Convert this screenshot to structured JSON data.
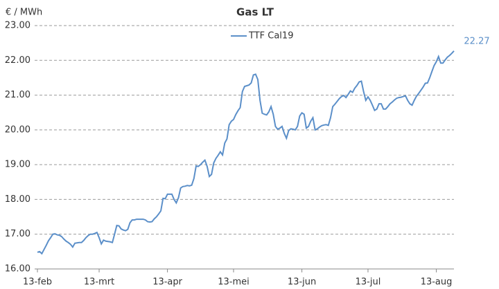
{
  "chart_data": {
    "type": "line",
    "title": "Gas LT",
    "y_label": "€ / MWh",
    "categories": [
      "13-feb",
      null,
      null,
      null,
      null,
      null,
      null,
      null,
      null,
      null,
      null,
      null,
      null,
      null,
      null,
      null,
      null,
      null,
      null,
      null,
      null,
      null,
      null,
      null,
      null,
      null,
      null,
      null,
      "13-mrt",
      null,
      null,
      null,
      null,
      null,
      null,
      null,
      null,
      null,
      null,
      null,
      null,
      null,
      null,
      null,
      null,
      null,
      null,
      null,
      null,
      null,
      null,
      null,
      null,
      null,
      null,
      null,
      null,
      null,
      null,
      "13-apr",
      null,
      null,
      null,
      null,
      null,
      null,
      null,
      null,
      null,
      null,
      null,
      null,
      null,
      null,
      null,
      null,
      null,
      null,
      null,
      null,
      null,
      null,
      null,
      null,
      null,
      null,
      null,
      null,
      null,
      "13-mei",
      null,
      null,
      null,
      null,
      null,
      null,
      null,
      null,
      null,
      null,
      null,
      null,
      null,
      null,
      null,
      null,
      null,
      null,
      null,
      null,
      null,
      null,
      null,
      null,
      null,
      null,
      null,
      null,
      null,
      null,
      "13-jun",
      null,
      null,
      null,
      null,
      null,
      null,
      null,
      null,
      null,
      null,
      null,
      null,
      null,
      null,
      null,
      null,
      null,
      null,
      null,
      null,
      null,
      null,
      null,
      null,
      null,
      null,
      null,
      null,
      null,
      "13-jul",
      null,
      null,
      null,
      null,
      null,
      null,
      null,
      null,
      null,
      null,
      null,
      null,
      null,
      null,
      null,
      null,
      null,
      null,
      null,
      null,
      null,
      null,
      null,
      null,
      null,
      null,
      null,
      null,
      null,
      null,
      "13-aug",
      null,
      null,
      null,
      null,
      null,
      null,
      null,
      null
    ],
    "series": [
      {
        "name": "TTF Cal19",
        "color": "#5b8fc9",
        "values": [
          16.48,
          16.5,
          16.44,
          16.56,
          16.68,
          16.81,
          16.9,
          17.0,
          17.01,
          16.98,
          16.97,
          16.93,
          16.86,
          16.8,
          16.76,
          16.71,
          16.63,
          16.74,
          16.75,
          16.76,
          16.76,
          16.82,
          16.9,
          16.96,
          17.0,
          17.0,
          17.02,
          17.05,
          16.9,
          16.72,
          16.83,
          16.8,
          16.79,
          16.78,
          16.76,
          17.0,
          17.25,
          17.24,
          17.15,
          17.12,
          17.1,
          17.14,
          17.33,
          17.41,
          17.41,
          17.43,
          17.43,
          17.43,
          17.43,
          17.41,
          17.36,
          17.35,
          17.36,
          17.44,
          17.5,
          17.58,
          17.67,
          18.03,
          18.02,
          18.15,
          18.15,
          18.15,
          18.0,
          17.9,
          18.05,
          18.33,
          18.37,
          18.38,
          18.4,
          18.39,
          18.41,
          18.6,
          18.96,
          18.95,
          19.0,
          19.07,
          19.13,
          18.95,
          18.66,
          18.72,
          19.05,
          19.18,
          19.27,
          19.37,
          19.28,
          19.62,
          19.74,
          20.15,
          20.25,
          20.3,
          20.44,
          20.55,
          20.64,
          21.1,
          21.25,
          21.27,
          21.29,
          21.35,
          21.58,
          21.6,
          21.45,
          20.85,
          20.48,
          20.45,
          20.43,
          20.52,
          20.67,
          20.45,
          20.1,
          20.02,
          20.05,
          20.1,
          19.9,
          19.76,
          19.98,
          20.03,
          20.02,
          20.0,
          20.1,
          20.4,
          20.49,
          20.45,
          20.05,
          20.1,
          20.25,
          20.35,
          20.0,
          20.03,
          20.08,
          20.12,
          20.14,
          20.15,
          20.13,
          20.35,
          20.67,
          20.74,
          20.82,
          20.9,
          20.96,
          20.99,
          20.93,
          21.02,
          21.12,
          21.08,
          21.2,
          21.28,
          21.38,
          21.4,
          21.1,
          20.85,
          20.95,
          20.85,
          20.71,
          20.56,
          20.6,
          20.75,
          20.75,
          20.6,
          20.6,
          20.67,
          20.75,
          20.8,
          20.86,
          20.91,
          20.93,
          20.94,
          20.96,
          20.98,
          20.85,
          20.75,
          20.71,
          20.85,
          20.97,
          21.05,
          21.14,
          21.23,
          21.34,
          21.35,
          21.5,
          21.68,
          21.85,
          21.96,
          22.11,
          21.92,
          21.92,
          22.01,
          22.09,
          22.14,
          22.2,
          22.27
        ]
      }
    ],
    "ylim": [
      16,
      23
    ],
    "yticks": [
      {
        "value": 16,
        "label": "16.00"
      },
      {
        "value": 17,
        "label": "17.00"
      },
      {
        "value": 18,
        "label": "18.00"
      },
      {
        "value": 19,
        "label": "19.00"
      },
      {
        "value": 20,
        "label": "20.00"
      },
      {
        "value": 21,
        "label": "21.00"
      },
      {
        "value": 22,
        "label": "22.00"
      },
      {
        "value": 23,
        "label": "23.00"
      }
    ],
    "grid": true
  }
}
